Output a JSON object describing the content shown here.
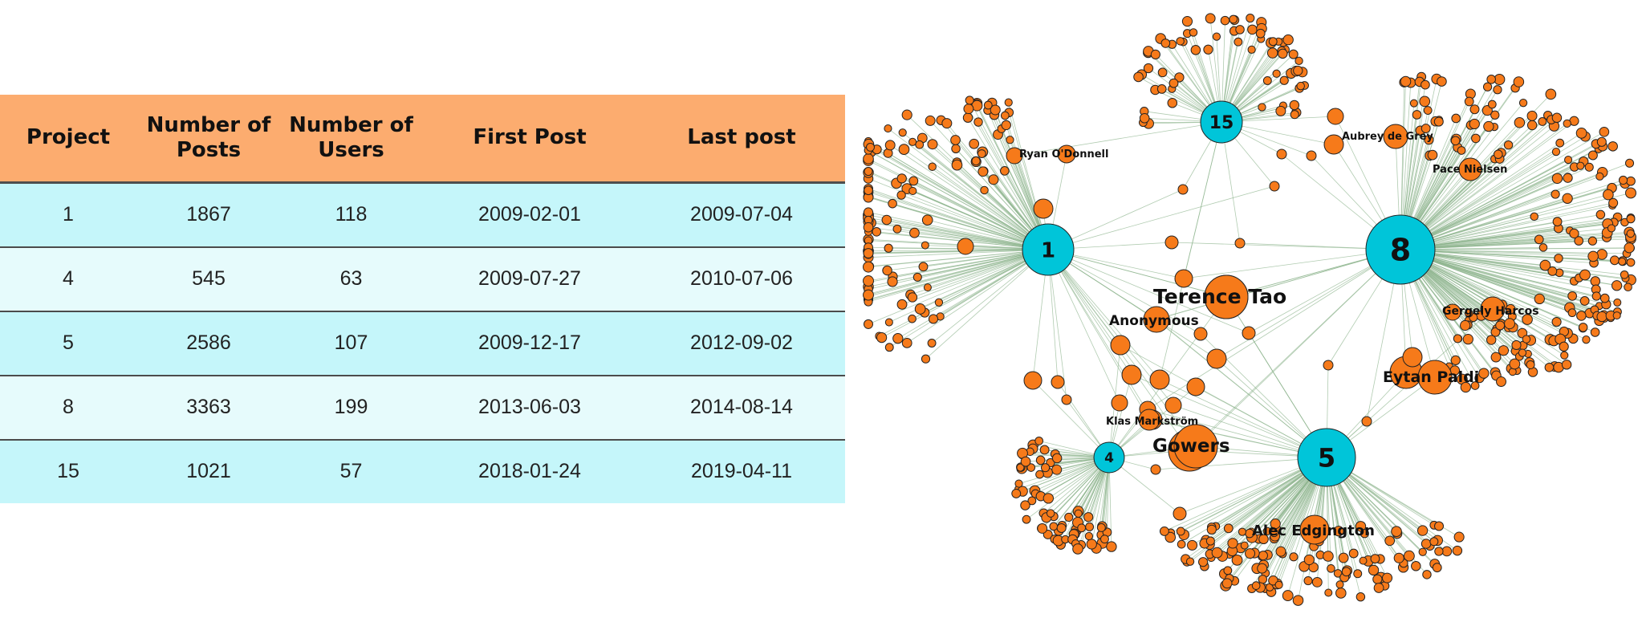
{
  "table": {
    "headers": [
      {
        "lines": [
          "Project"
        ]
      },
      {
        "lines": [
          "Number of",
          "Posts"
        ]
      },
      {
        "lines": [
          "Number of",
          "Users"
        ]
      },
      {
        "lines": [
          "First Post"
        ]
      },
      {
        "lines": [
          "Last post"
        ]
      }
    ],
    "rows": [
      [
        "1",
        "1867",
        "118",
        "2009-02-01",
        "2009-07-04"
      ],
      [
        "4",
        "545",
        "63",
        "2009-07-27",
        "2010-07-06"
      ],
      [
        "5",
        "2586",
        "107",
        "2009-12-17",
        "2012-09-02"
      ],
      [
        "8",
        "3363",
        "199",
        "2013-06-03",
        "2014-08-14"
      ],
      [
        "15",
        "1021",
        "57",
        "2018-01-24",
        "2019-04-11"
      ]
    ]
  },
  "network": {
    "colors": {
      "project": "#00c5d9",
      "user": "#f67a1a",
      "edge": "#8fb58f",
      "stroke": "#222222"
    },
    "project_labels": [
      "1",
      "4",
      "5",
      "8",
      "15"
    ],
    "user_labels": [
      "Ryan O'Donnell",
      "Aubrey de Grey",
      "Pace Nielsen",
      "Terence Tao",
      "Anonymous",
      "Gergely Harcos",
      "Eytan Paldi",
      "Klas Markström",
      "Gowers",
      "Alec Edgington"
    ]
  }
}
